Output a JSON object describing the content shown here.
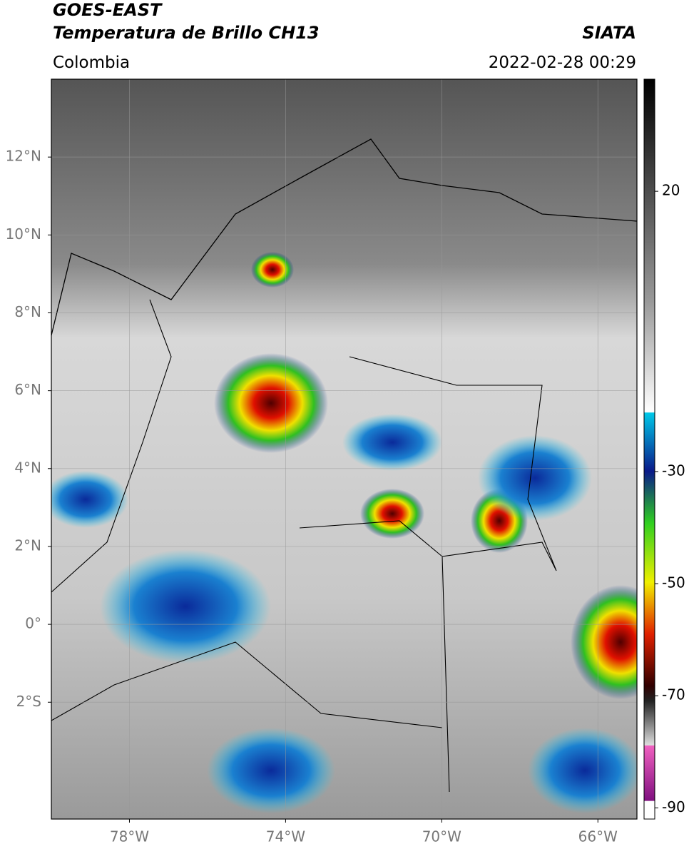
{
  "header": {
    "satellite": "GOES-EAST",
    "product": "Temperatura de Brillo CH13",
    "source": "SIATA",
    "region": "Colombia",
    "datetime": "2022-02-28 00:29"
  },
  "map": {
    "xlim": [
      -80,
      -65
    ],
    "ylim": [
      -5,
      14
    ],
    "lon_ticks": [
      {
        "value": -78,
        "label": "78°W"
      },
      {
        "value": -74,
        "label": "74°W"
      },
      {
        "value": -70,
        "label": "70°W"
      },
      {
        "value": -66,
        "label": "66°W"
      }
    ],
    "lat_ticks": [
      {
        "value": 12,
        "label": "12°N"
      },
      {
        "value": 10,
        "label": "10°N"
      },
      {
        "value": 8,
        "label": "8°N"
      },
      {
        "value": 6,
        "label": "6°N"
      },
      {
        "value": 4,
        "label": "4°N"
      },
      {
        "value": 2,
        "label": "2°N"
      },
      {
        "value": 0,
        "label": "0°"
      },
      {
        "value": -2,
        "label": "2°S"
      }
    ]
  },
  "colorbar": {
    "lim": [
      -92,
      40
    ],
    "ticks": [
      20,
      -30,
      -50,
      -70,
      -90
    ]
  }
}
